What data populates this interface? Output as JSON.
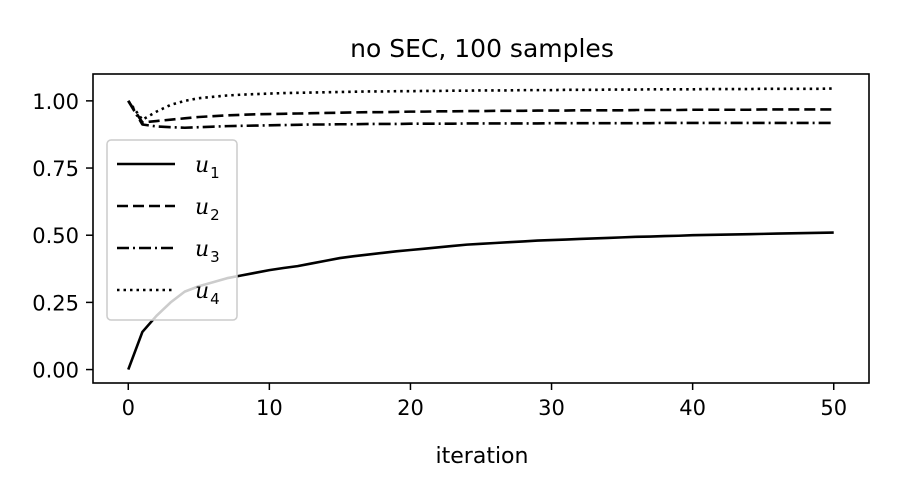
{
  "chart_data": {
    "type": "line",
    "title": "no SEC, 100 samples",
    "xlabel": "iteration",
    "ylabel": "",
    "xlim": [
      -2.5,
      52.5
    ],
    "ylim": [
      -0.05,
      1.1
    ],
    "xticks": [
      0,
      10,
      20,
      30,
      40,
      50
    ],
    "yticks": [
      0.0,
      0.25,
      0.5,
      0.75,
      1.0
    ],
    "xtick_labels": [
      "0",
      "10",
      "20",
      "30",
      "40",
      "50"
    ],
    "ytick_labels": [
      "0.00",
      "0.25",
      "0.50",
      "0.75",
      "1.00"
    ],
    "grid": false,
    "legend_position": "center-left",
    "x": [
      0,
      1,
      2,
      3,
      4,
      5,
      6,
      7,
      8,
      9,
      10,
      11,
      12,
      13,
      14,
      15,
      16,
      17,
      18,
      19,
      20,
      21,
      22,
      23,
      24,
      25,
      26,
      27,
      28,
      29,
      30,
      31,
      32,
      33,
      34,
      35,
      36,
      37,
      38,
      39,
      40,
      41,
      42,
      43,
      44,
      45,
      46,
      47,
      48,
      49,
      50
    ],
    "series": [
      {
        "name": "u",
        "subscript": "1",
        "dash": "solid",
        "color": "#000000",
        "values": [
          0.0,
          0.14,
          0.2,
          0.25,
          0.29,
          0.31,
          0.325,
          0.34,
          0.35,
          0.36,
          0.37,
          0.378,
          0.385,
          0.395,
          0.405,
          0.415,
          0.422,
          0.428,
          0.434,
          0.44,
          0.445,
          0.45,
          0.455,
          0.46,
          0.465,
          0.468,
          0.471,
          0.474,
          0.477,
          0.48,
          0.482,
          0.484,
          0.486,
          0.488,
          0.49,
          0.492,
          0.494,
          0.495,
          0.497,
          0.498,
          0.5,
          0.501,
          0.502,
          0.503,
          0.504,
          0.505,
          0.506,
          0.507,
          0.508,
          0.509,
          0.51
        ]
      },
      {
        "name": "u",
        "subscript": "2",
        "dash": "dashed",
        "color": "#000000",
        "values": [
          1.0,
          0.92,
          0.925,
          0.93,
          0.935,
          0.94,
          0.943,
          0.946,
          0.948,
          0.95,
          0.951,
          0.952,
          0.953,
          0.954,
          0.955,
          0.956,
          0.957,
          0.958,
          0.958,
          0.959,
          0.96,
          0.96,
          0.961,
          0.961,
          0.962,
          0.962,
          0.963,
          0.963,
          0.963,
          0.964,
          0.964,
          0.964,
          0.965,
          0.965,
          0.965,
          0.965,
          0.966,
          0.966,
          0.966,
          0.966,
          0.967,
          0.967,
          0.967,
          0.967,
          0.967,
          0.968,
          0.968,
          0.968,
          0.968,
          0.968,
          0.968
        ]
      },
      {
        "name": "u",
        "subscript": "3",
        "dash": "dashdot",
        "color": "#000000",
        "values": [
          1.0,
          0.912,
          0.905,
          0.902,
          0.9,
          0.902,
          0.904,
          0.906,
          0.907,
          0.908,
          0.909,
          0.91,
          0.911,
          0.912,
          0.912,
          0.913,
          0.913,
          0.914,
          0.914,
          0.914,
          0.915,
          0.915,
          0.915,
          0.915,
          0.916,
          0.916,
          0.916,
          0.916,
          0.916,
          0.916,
          0.917,
          0.917,
          0.917,
          0.917,
          0.917,
          0.917,
          0.917,
          0.917,
          0.918,
          0.918,
          0.918,
          0.918,
          0.918,
          0.918,
          0.918,
          0.918,
          0.918,
          0.918,
          0.918,
          0.918,
          0.918
        ]
      },
      {
        "name": "u",
        "subscript": "4",
        "dash": "dotted",
        "color": "#000000",
        "values": [
          1.0,
          0.93,
          0.96,
          0.985,
          1.0,
          1.01,
          1.015,
          1.02,
          1.023,
          1.025,
          1.027,
          1.029,
          1.03,
          1.031,
          1.032,
          1.033,
          1.034,
          1.035,
          1.035,
          1.036,
          1.036,
          1.037,
          1.037,
          1.038,
          1.038,
          1.039,
          1.039,
          1.039,
          1.04,
          1.04,
          1.04,
          1.041,
          1.041,
          1.041,
          1.042,
          1.042,
          1.042,
          1.043,
          1.043,
          1.043,
          1.043,
          1.044,
          1.044,
          1.044,
          1.044,
          1.045,
          1.045,
          1.045,
          1.045,
          1.045,
          1.046
        ]
      }
    ]
  }
}
